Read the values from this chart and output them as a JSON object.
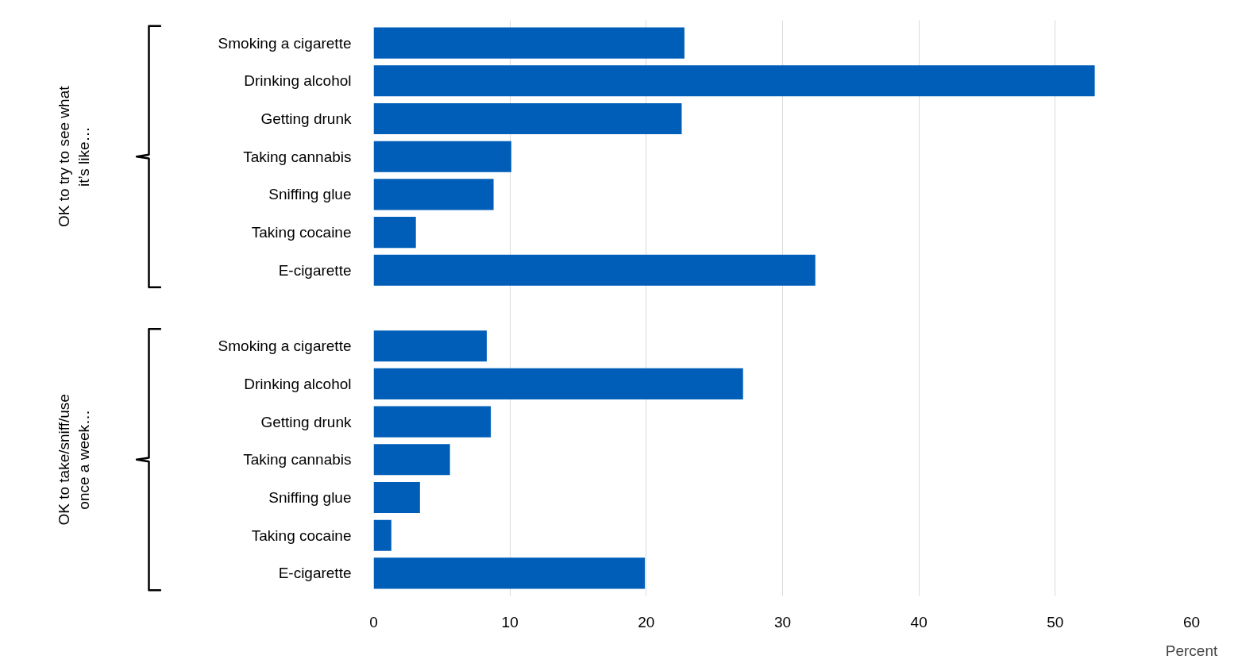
{
  "chart_data": {
    "type": "bar",
    "orientation": "horizontal",
    "xlabel": "Percent",
    "categories": [
      "Smoking a cigarette",
      "Drinking alcohol",
      "Getting drunk",
      "Taking cannabis",
      "Sniffing glue",
      "Taking cocaine",
      "E-cigarette",
      null,
      "Smoking a cigarette",
      "Drinking alcohol",
      "Getting drunk",
      "Taking cannabis",
      "Sniffing glue",
      "Taking cocaine",
      "E-cigarette"
    ],
    "values": [
      22.8,
      52.9,
      22.6,
      10.1,
      8.8,
      3.1,
      32.4,
      null,
      8.3,
      27.1,
      8.6,
      5.6,
      3.4,
      1.3,
      19.9
    ],
    "color": "#005eb8",
    "xlim": [
      0,
      60
    ],
    "xticks": [
      0,
      10,
      20,
      30,
      40,
      50,
      60
    ],
    "grid": "x",
    "annotations": [
      "OK to try to see what\nit’s like…",
      "OK to take/sniff/use\nonce a week…"
    ]
  }
}
